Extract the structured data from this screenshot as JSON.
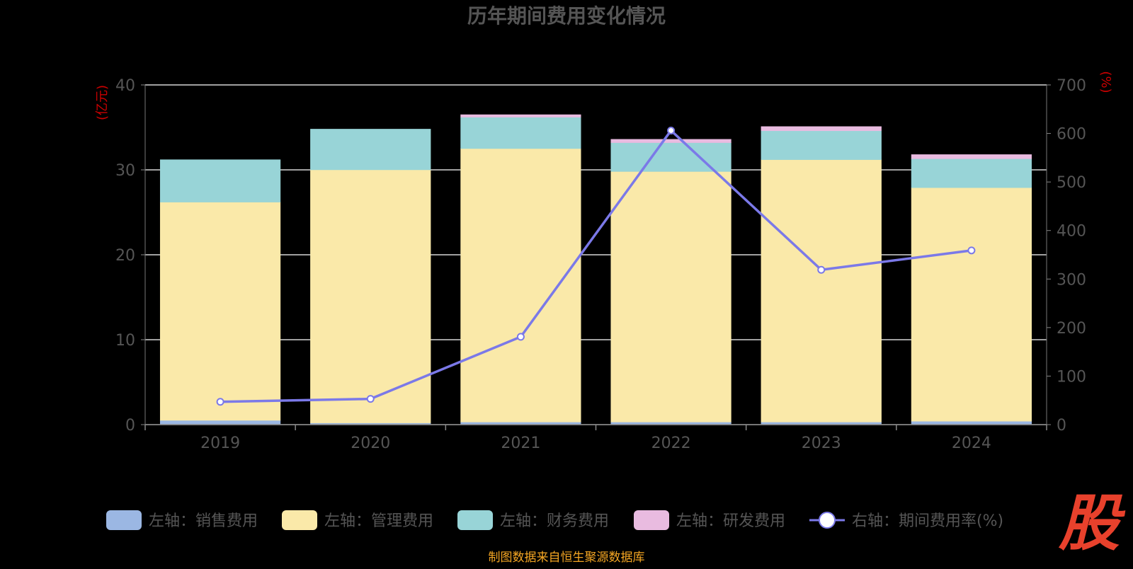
{
  "chart_data": {
    "type": "bar",
    "title": "历年期间费用变化情况",
    "categories": [
      "2019",
      "2020",
      "2021",
      "2022",
      "2023",
      "2024"
    ],
    "y_left": {
      "unit_label": "(亿元)",
      "ylim": [
        0,
        40
      ],
      "ticks": [
        "0",
        "10",
        "20",
        "30",
        "40"
      ]
    },
    "y_right": {
      "unit_label": "(%)",
      "ylim": [
        0,
        700
      ],
      "ticks": [
        "0",
        "100",
        "200",
        "300",
        "400",
        "500",
        "600",
        "700"
      ]
    },
    "series": [
      {
        "name": "左轴：销售费用",
        "kind": "bar",
        "axis": "left",
        "color": "#9bb7e3",
        "values": [
          0.5,
          0.2,
          0.3,
          0.3,
          0.3,
          0.4
        ]
      },
      {
        "name": "左轴：管理费用",
        "kind": "bar",
        "axis": "left",
        "color": "#fae9a9",
        "values": [
          25.7,
          29.8,
          32.2,
          29.5,
          30.9,
          27.5
        ]
      },
      {
        "name": "左轴：财务费用",
        "kind": "bar",
        "axis": "left",
        "color": "#98d4d7",
        "values": [
          5.0,
          4.8,
          3.7,
          3.4,
          3.4,
          3.4
        ]
      },
      {
        "name": "左轴：研发费用",
        "kind": "bar",
        "axis": "left",
        "color": "#e9bbe0",
        "values": [
          0.0,
          0.0,
          0.3,
          0.4,
          0.5,
          0.5
        ]
      },
      {
        "name": "右轴：期间费用率(%)",
        "kind": "line",
        "axis": "right",
        "color": "#7b79e8",
        "values": [
          47,
          53,
          181,
          606,
          319,
          359
        ]
      }
    ],
    "grid": true,
    "legend_position": "bottom"
  },
  "footer": {
    "source": "制图数据来自恒生聚源数据库"
  },
  "logo": {
    "text": "股"
  },
  "colors": {
    "background": "#000000",
    "text_muted": "#555555",
    "unit_red": "#cc0000",
    "source_orange": "#f5a623",
    "logo_red": "#e8412c"
  }
}
